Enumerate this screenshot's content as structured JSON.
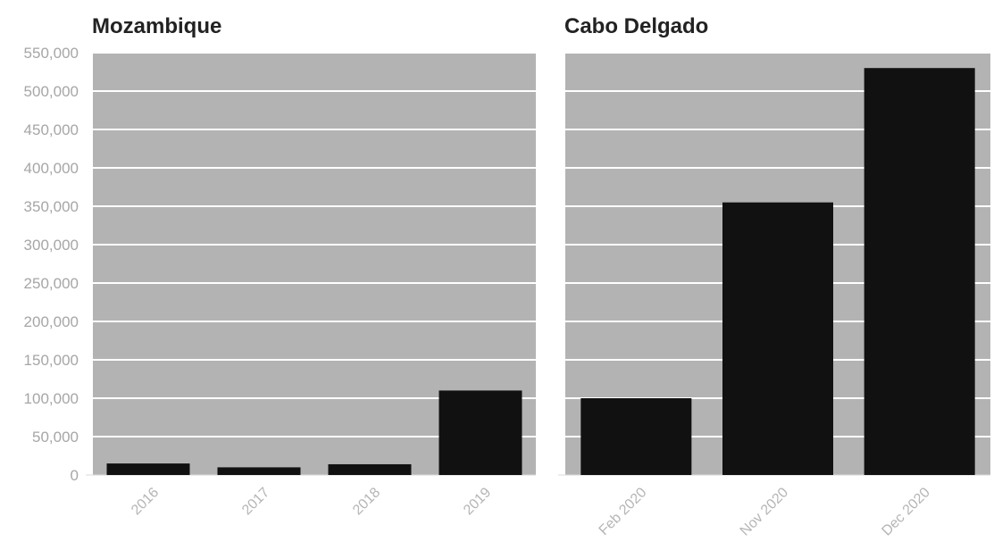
{
  "chart_data": [
    {
      "type": "bar",
      "title": "Mozambique",
      "categories": [
        "2016",
        "2017",
        "2018",
        "2019"
      ],
      "values": [
        15000,
        10000,
        14000,
        110000
      ],
      "ylim": [
        0,
        550000
      ],
      "yticks": [
        "0",
        "50,000",
        "100,000",
        "150,000",
        "200,000",
        "250,000",
        "300,000",
        "350,000",
        "400,000",
        "450,000",
        "500,000",
        "550,000"
      ],
      "grid": true,
      "colors": {
        "bar": "#111111",
        "plot_bg": "#b3b3b3",
        "grid": "#ffffff"
      }
    },
    {
      "type": "bar",
      "title": "Cabo Delgado",
      "categories": [
        "Feb 2020",
        "Nov 2020",
        "Dec 2020"
      ],
      "values": [
        100000,
        355000,
        530000
      ],
      "ylim": [
        0,
        550000
      ],
      "grid": true,
      "colors": {
        "bar": "#111111",
        "plot_bg": "#b3b3b3",
        "grid": "#ffffff"
      }
    }
  ]
}
